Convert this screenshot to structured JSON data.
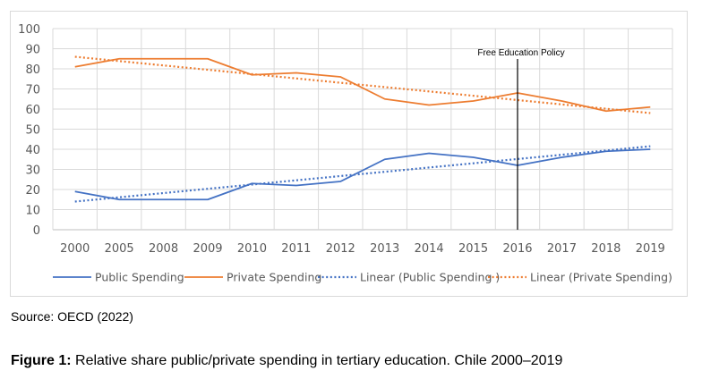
{
  "chart_data": {
    "type": "line",
    "title": "",
    "xlabel": "",
    "ylabel": "",
    "categories": [
      "2000",
      "2005",
      "2008",
      "2009",
      "2010",
      "2011",
      "2012",
      "2013",
      "2014",
      "2015",
      "2016",
      "2017",
      "2018",
      "2019"
    ],
    "ylim": [
      0,
      100
    ],
    "yticks": [
      0,
      10,
      20,
      30,
      40,
      50,
      60,
      70,
      80,
      90,
      100
    ],
    "grid": true,
    "legend_position": "bottom",
    "series": [
      {
        "name": "Public Spending",
        "style": "solid",
        "color": "#4472c4",
        "values": [
          19,
          15,
          15,
          15,
          23,
          22,
          24,
          35,
          38,
          36,
          32,
          36,
          39,
          40
        ]
      },
      {
        "name": "Private Spending",
        "style": "solid",
        "color": "#ed7d31",
        "values": [
          81,
          85,
          85,
          85,
          77,
          78,
          76,
          65,
          62,
          64,
          68,
          64,
          59,
          61
        ]
      },
      {
        "name": "Linear (Public Spending )",
        "style": "dotted",
        "color": "#4472c4",
        "trend_of": "Public Spending",
        "start": 14,
        "end": 41.5
      },
      {
        "name": "Linear (Private Spending)",
        "style": "dotted",
        "color": "#ed7d31",
        "trend_of": "Private Spending",
        "start": 86,
        "end": 58
      }
    ],
    "annotations": [
      {
        "text": "Free Education Policy",
        "category": "2016",
        "type": "vertical-line"
      }
    ]
  },
  "source": "Source: OECD (2022)",
  "caption": {
    "label": "Figure 1:",
    "text": " Relative share public/private spending in tertiary education. Chile 2000–2019"
  }
}
